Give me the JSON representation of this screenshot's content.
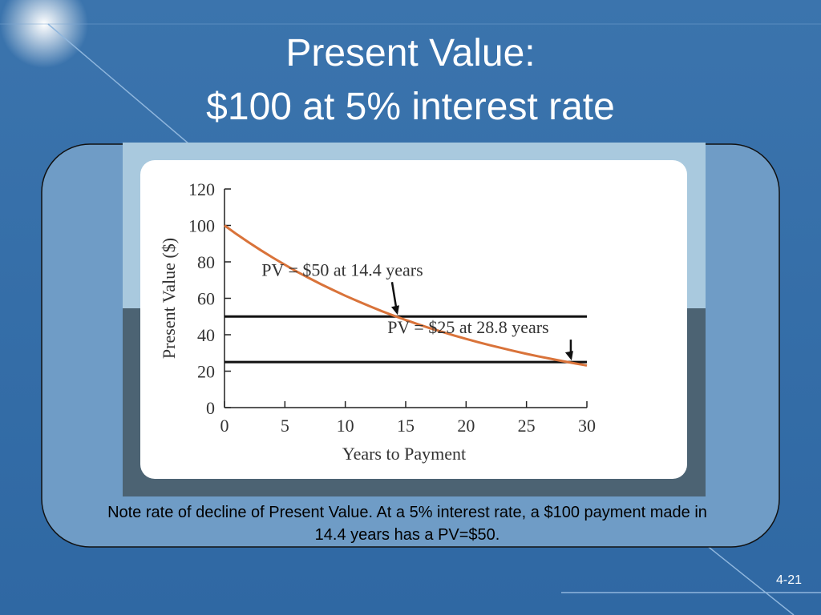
{
  "slide": {
    "title": "Present Value:",
    "subtitle": "$100 at 5% interest rate",
    "note": "Note rate of decline of Present Value. At a 5% interest rate, a $100 payment made in 14.4 years has a PV=$50.",
    "page_number": "4-21"
  },
  "chart_data": {
    "type": "line",
    "x_label": "Years to Payment",
    "y_label": "Present Value ($)",
    "x": [
      0,
      1,
      2,
      3,
      4,
      5,
      6,
      7,
      8,
      9,
      10,
      11,
      12,
      13,
      14,
      15,
      16,
      17,
      18,
      19,
      20,
      21,
      22,
      23,
      24,
      25,
      26,
      27,
      28,
      29,
      30
    ],
    "series": [
      {
        "color": "#d9733a",
        "values": [
          100,
          95.2,
          90.7,
          86.4,
          82.3,
          78.4,
          74.6,
          71.1,
          67.7,
          64.5,
          61.4,
          58.5,
          55.7,
          53.0,
          50.5,
          48.1,
          45.8,
          43.6,
          41.6,
          39.6,
          37.7,
          35.9,
          34.2,
          32.6,
          31.0,
          29.5,
          28.1,
          26.8,
          25.5,
          24.3,
          23.1
        ]
      }
    ],
    "reference_lines": [
      {
        "value": 50,
        "color": "#111111"
      },
      {
        "value": 25,
        "color": "#111111"
      }
    ],
    "annotations": [
      {
        "text": "PV = $50 at 14.4 years",
        "x": 14.4,
        "y": 50
      },
      {
        "text": "PV = $25 at 28.8 years",
        "x": 28.8,
        "y": 25
      }
    ],
    "xlim": [
      0,
      30
    ],
    "ylim": [
      0,
      120
    ],
    "xticks": [
      0,
      5,
      10,
      15,
      20,
      25,
      30
    ],
    "yticks": [
      0,
      20,
      40,
      60,
      80,
      100,
      120
    ]
  }
}
